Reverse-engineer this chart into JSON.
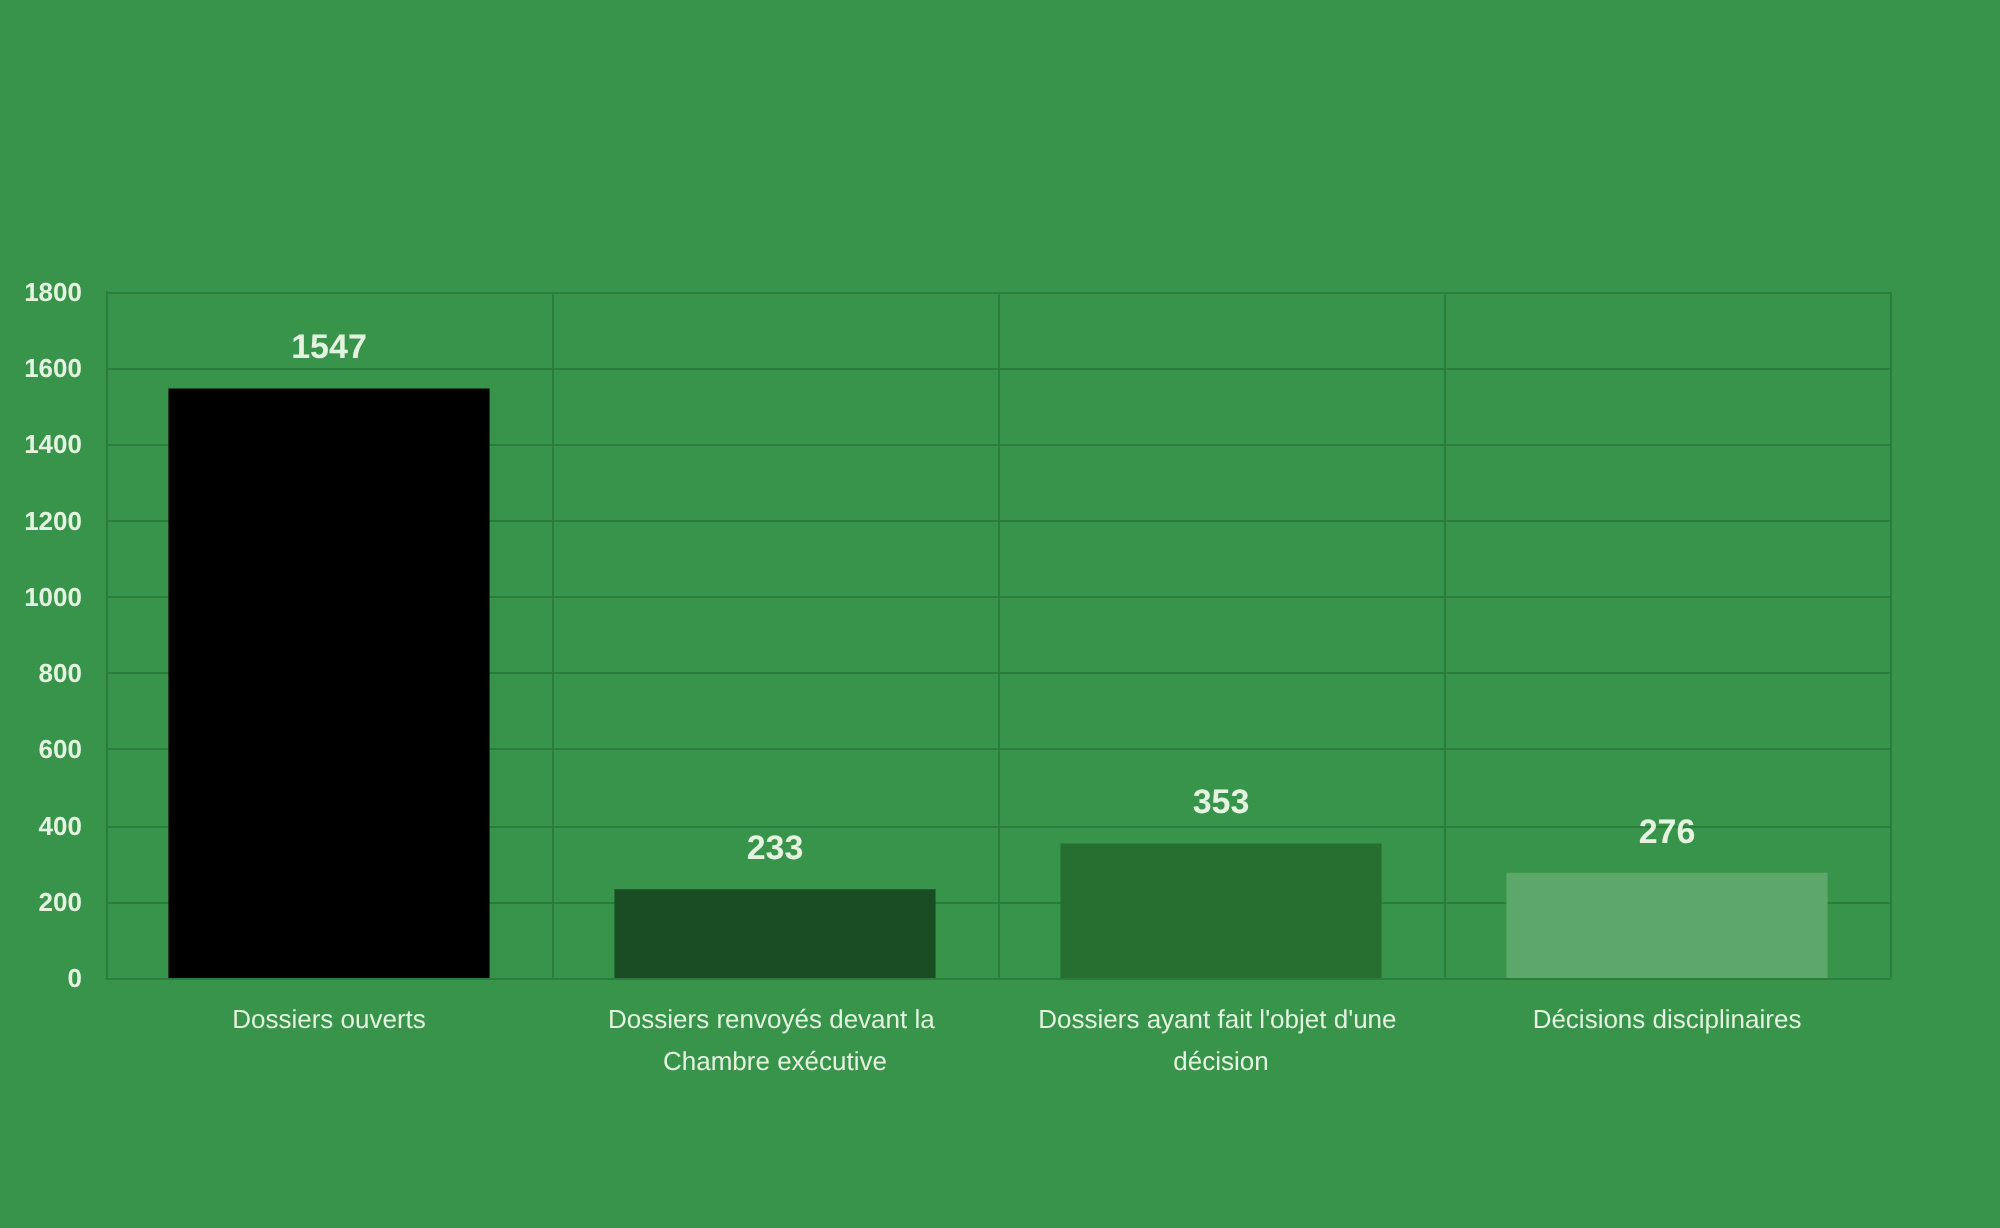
{
  "chart_data": {
    "type": "bar",
    "categories": [
      "Dossiers ouverts",
      "Dossiers renvoyés devant la Chambre exécutive",
      "Dossiers ayant fait l'objet d'une décision",
      "Décisions disciplinaires"
    ],
    "values": [
      1547,
      233,
      353,
      276
    ],
    "colors": [
      "#000000",
      "#1b4d24",
      "#266f31",
      "#5ca86a"
    ],
    "ylim": [
      0,
      1800
    ],
    "yticks": [
      0,
      200,
      400,
      600,
      800,
      1000,
      1200,
      1400,
      1600,
      1800
    ],
    "grid": true,
    "data_labels": true
  }
}
